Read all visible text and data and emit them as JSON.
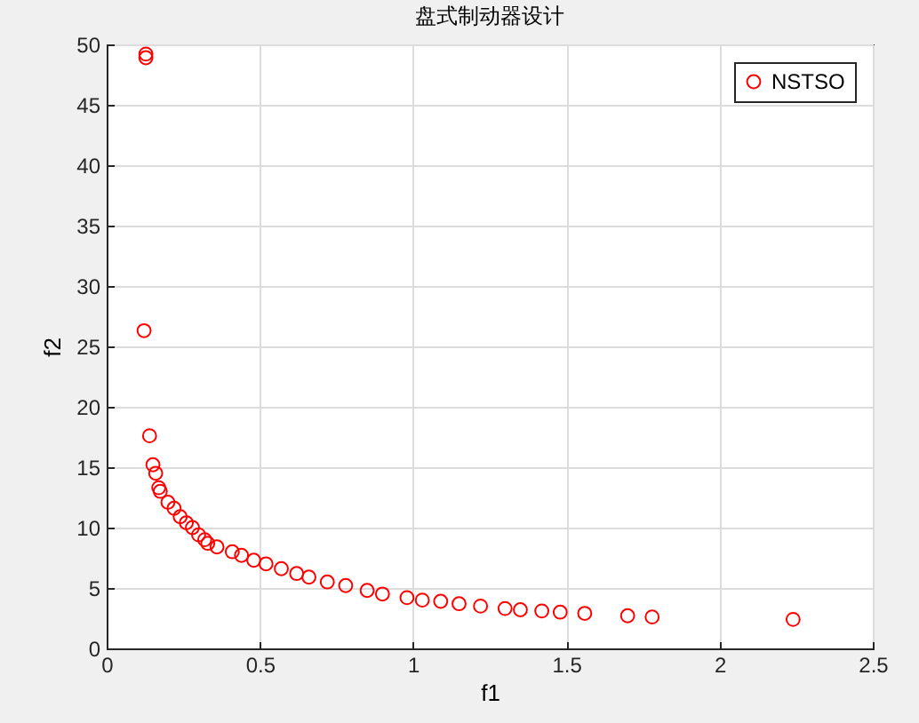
{
  "chart_data": {
    "type": "scatter",
    "title": "盘式制动器设计",
    "xlabel": "f1",
    "ylabel": "f2",
    "x": [
      0.128,
      0.128,
      0.122,
      0.14,
      0.151,
      0.16,
      0.17,
      0.175,
      0.2,
      0.22,
      0.24,
      0.26,
      0.28,
      0.3,
      0.32,
      0.33,
      0.36,
      0.41,
      0.44,
      0.48,
      0.52,
      0.57,
      0.62,
      0.66,
      0.72,
      0.78,
      0.85,
      0.9,
      0.98,
      1.03,
      1.09,
      1.15,
      1.22,
      1.3,
      1.35,
      1.42,
      1.48,
      1.56,
      1.7,
      1.78,
      2.24
    ],
    "series": [
      {
        "name": "NSTSO",
        "color": "#ff0000",
        "values": [
          49.2,
          48.9,
          26.3,
          17.6,
          15.2,
          14.5,
          13.3,
          13.0,
          12.1,
          11.6,
          10.9,
          10.4,
          10.0,
          9.4,
          9.0,
          8.7,
          8.4,
          8.0,
          7.7,
          7.3,
          7.0,
          6.6,
          6.2,
          5.9,
          5.5,
          5.2,
          4.8,
          4.5,
          4.2,
          4.0,
          3.9,
          3.7,
          3.5,
          3.3,
          3.2,
          3.1,
          3.0,
          2.9,
          2.7,
          2.6,
          2.4
        ]
      }
    ],
    "xlim": [
      0,
      2.5
    ],
    "xticks": [
      0,
      0.5,
      1,
      1.5,
      2,
      2.5
    ],
    "ylim": [
      0,
      50
    ],
    "yticks": [
      0,
      5,
      10,
      15,
      20,
      25,
      30,
      35,
      40,
      45,
      50
    ],
    "grid": true,
    "legend": "top right",
    "marker": "circle"
  }
}
